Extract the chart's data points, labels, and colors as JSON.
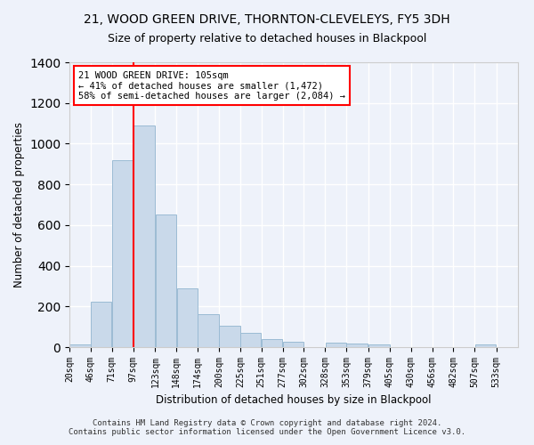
{
  "title": "21, WOOD GREEN DRIVE, THORNTON-CLEVELEYS, FY5 3DH",
  "subtitle": "Size of property relative to detached houses in Blackpool",
  "xlabel": "Distribution of detached houses by size in Blackpool",
  "ylabel": "Number of detached properties",
  "bar_color": "#c9d9ea",
  "bar_edge_color": "#9bbbd4",
  "background_color": "#eef2fa",
  "grid_color": "#ffffff",
  "tick_labels": [
    "20sqm",
    "46sqm",
    "71sqm",
    "97sqm",
    "123sqm",
    "148sqm",
    "174sqm",
    "200sqm",
    "225sqm",
    "251sqm",
    "277sqm",
    "302sqm",
    "328sqm",
    "353sqm",
    "379sqm",
    "405sqm",
    "430sqm",
    "456sqm",
    "482sqm",
    "507sqm",
    "533sqm"
  ],
  "bar_heights": [
    15,
    225,
    920,
    1090,
    650,
    290,
    160,
    105,
    70,
    40,
    25,
    0,
    22,
    18,
    12,
    0,
    0,
    0,
    0,
    12,
    0
  ],
  "annotation_text": "21 WOOD GREEN DRIVE: 105sqm\n← 41% of detached houses are smaller (1,472)\n58% of semi-detached houses are larger (2,084) →",
  "ylim": [
    0,
    1400
  ],
  "bin_width": 25.5,
  "bin_edges": [
    7.5,
    33,
    58.5,
    84,
    110.5,
    136,
    161.5,
    187,
    212.5,
    238,
    263.5,
    289,
    314.5,
    340,
    366,
    392,
    417.5,
    443,
    468.5,
    494,
    520,
    546
  ],
  "redline_x": 84,
  "footnote": "Contains HM Land Registry data © Crown copyright and database right 2024.\nContains public sector information licensed under the Open Government Licence v3.0."
}
